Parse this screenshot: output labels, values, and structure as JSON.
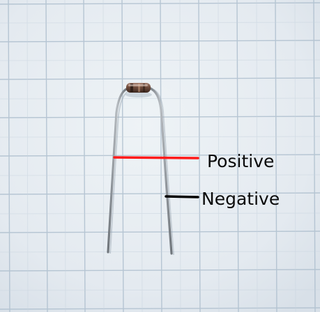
{
  "labels": {
    "positive": "Positive",
    "negative": "Negative"
  },
  "colors": {
    "paper": "#e6ecf1",
    "grid": "#aebfce",
    "positive_marker": "#ff1a1a",
    "negative_marker": "#000000",
    "component_body": "#6e4a3a",
    "lead_wire": "#8a8f94"
  }
}
